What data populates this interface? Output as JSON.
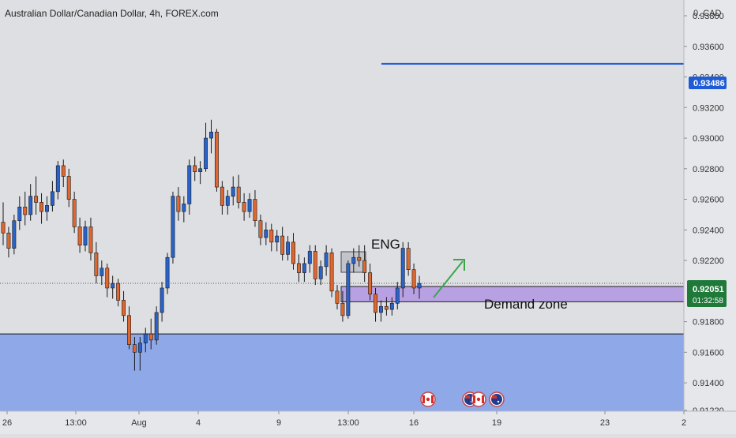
{
  "header": {
    "title": "Australian Dollar/Canadian Dollar, 4h, FOREX.com"
  },
  "axis": {
    "currency_label": "0. CAD"
  },
  "price_badges": {
    "target": "0.93486",
    "current": "0.92051",
    "countdown": "01:32:58"
  },
  "annotations": {
    "pattern": "ENG",
    "zone": "Demand zone"
  },
  "event_icons": [
    "flag-canada",
    "flag-australia",
    "flag-canada",
    "flag-australia"
  ],
  "colors": {
    "background": "#dedfe2",
    "up_candle": "#2962c9",
    "down_candle": "#e0672f",
    "target_line": "#1e5bd6",
    "demand_zone": "#b8a1e3",
    "lower_zone": "#8fa8e8",
    "current_price_badge": "#1f7a3a",
    "arrow": "#3aa64a"
  },
  "chart_data": {
    "type": "candlestick",
    "symbol": "AUD/CAD",
    "timeframe": "4h",
    "ylim": [
      0.9122,
      0.9395
    ],
    "y_ticks": [
      "0.93800",
      "0.93600",
      "0.93400",
      "0.93200",
      "0.93000",
      "0.92800",
      "0.92600",
      "0.92400",
      "0.92200",
      "0.91800",
      "0.91600",
      "0.91400",
      "0.91220"
    ],
    "x_ticks": [
      "26",
      "13:00",
      "Aug",
      "4",
      "9",
      "13:00",
      "16",
      "19",
      "23",
      "2"
    ],
    "target_level": 0.93486,
    "current_price": 0.92051,
    "demand_zone": [
      0.9193,
      0.9203
    ],
    "lower_zone": [
      0.9122,
      0.9172
    ],
    "candles": [
      {
        "o": 0.9245,
        "h": 0.9258,
        "l": 0.923,
        "c": 0.9238
      },
      {
        "o": 0.9238,
        "h": 0.9242,
        "l": 0.9222,
        "c": 0.9228
      },
      {
        "o": 0.9228,
        "h": 0.925,
        "l": 0.9224,
        "c": 0.9246
      },
      {
        "o": 0.9246,
        "h": 0.9262,
        "l": 0.924,
        "c": 0.9255
      },
      {
        "o": 0.9255,
        "h": 0.9265,
        "l": 0.9243,
        "c": 0.925
      },
      {
        "o": 0.925,
        "h": 0.927,
        "l": 0.9246,
        "c": 0.9262
      },
      {
        "o": 0.9262,
        "h": 0.9275,
        "l": 0.925,
        "c": 0.9258
      },
      {
        "o": 0.9258,
        "h": 0.9264,
        "l": 0.9244,
        "c": 0.9252
      },
      {
        "o": 0.9252,
        "h": 0.9262,
        "l": 0.9246,
        "c": 0.9256
      },
      {
        "o": 0.9256,
        "h": 0.9272,
        "l": 0.9252,
        "c": 0.9265
      },
      {
        "o": 0.9265,
        "h": 0.9285,
        "l": 0.926,
        "c": 0.9282
      },
      {
        "o": 0.9282,
        "h": 0.9286,
        "l": 0.9268,
        "c": 0.9275
      },
      {
        "o": 0.9275,
        "h": 0.928,
        "l": 0.9255,
        "c": 0.926
      },
      {
        "o": 0.926,
        "h": 0.9265,
        "l": 0.9238,
        "c": 0.9242
      },
      {
        "o": 0.9242,
        "h": 0.9248,
        "l": 0.9225,
        "c": 0.923
      },
      {
        "o": 0.923,
        "h": 0.9246,
        "l": 0.9226,
        "c": 0.9242
      },
      {
        "o": 0.9242,
        "h": 0.9248,
        "l": 0.922,
        "c": 0.9225
      },
      {
        "o": 0.9225,
        "h": 0.9232,
        "l": 0.9205,
        "c": 0.921
      },
      {
        "o": 0.921,
        "h": 0.922,
        "l": 0.9204,
        "c": 0.9215
      },
      {
        "o": 0.9215,
        "h": 0.9218,
        "l": 0.9196,
        "c": 0.9202
      },
      {
        "o": 0.9202,
        "h": 0.921,
        "l": 0.9195,
        "c": 0.9205
      },
      {
        "o": 0.9205,
        "h": 0.9208,
        "l": 0.919,
        "c": 0.9194
      },
      {
        "o": 0.9194,
        "h": 0.92,
        "l": 0.918,
        "c": 0.9184
      },
      {
        "o": 0.9184,
        "h": 0.919,
        "l": 0.9162,
        "c": 0.9165
      },
      {
        "o": 0.9165,
        "h": 0.917,
        "l": 0.9148,
        "c": 0.916
      },
      {
        "o": 0.916,
        "h": 0.917,
        "l": 0.9148,
        "c": 0.9166
      },
      {
        "o": 0.9166,
        "h": 0.9176,
        "l": 0.916,
        "c": 0.9172
      },
      {
        "o": 0.9172,
        "h": 0.9182,
        "l": 0.9162,
        "c": 0.9168
      },
      {
        "o": 0.9168,
        "h": 0.919,
        "l": 0.9165,
        "c": 0.9186
      },
      {
        "o": 0.9186,
        "h": 0.9206,
        "l": 0.918,
        "c": 0.9202
      },
      {
        "o": 0.9202,
        "h": 0.9225,
        "l": 0.9198,
        "c": 0.9222
      },
      {
        "o": 0.9222,
        "h": 0.9265,
        "l": 0.9218,
        "c": 0.9262
      },
      {
        "o": 0.9262,
        "h": 0.9268,
        "l": 0.9246,
        "c": 0.9252
      },
      {
        "o": 0.9252,
        "h": 0.9262,
        "l": 0.9245,
        "c": 0.9257
      },
      {
        "o": 0.9257,
        "h": 0.9286,
        "l": 0.925,
        "c": 0.9282
      },
      {
        "o": 0.9282,
        "h": 0.9288,
        "l": 0.9272,
        "c": 0.9278
      },
      {
        "o": 0.9278,
        "h": 0.9285,
        "l": 0.927,
        "c": 0.928
      },
      {
        "o": 0.928,
        "h": 0.931,
        "l": 0.9278,
        "c": 0.93
      },
      {
        "o": 0.93,
        "h": 0.9312,
        "l": 0.929,
        "c": 0.9304
      },
      {
        "o": 0.9304,
        "h": 0.9306,
        "l": 0.9265,
        "c": 0.9268
      },
      {
        "o": 0.9268,
        "h": 0.9272,
        "l": 0.925,
        "c": 0.9256
      },
      {
        "o": 0.9256,
        "h": 0.9266,
        "l": 0.925,
        "c": 0.9262
      },
      {
        "o": 0.9262,
        "h": 0.9275,
        "l": 0.9256,
        "c": 0.9268
      },
      {
        "o": 0.9268,
        "h": 0.9276,
        "l": 0.9254,
        "c": 0.9258
      },
      {
        "o": 0.9258,
        "h": 0.9264,
        "l": 0.9246,
        "c": 0.9252
      },
      {
        "o": 0.9252,
        "h": 0.9264,
        "l": 0.9248,
        "c": 0.926
      },
      {
        "o": 0.926,
        "h": 0.9266,
        "l": 0.9242,
        "c": 0.9246
      },
      {
        "o": 0.9246,
        "h": 0.925,
        "l": 0.923,
        "c": 0.9235
      },
      {
        "o": 0.9235,
        "h": 0.9245,
        "l": 0.923,
        "c": 0.924
      },
      {
        "o": 0.924,
        "h": 0.9244,
        "l": 0.9226,
        "c": 0.9232
      },
      {
        "o": 0.9232,
        "h": 0.924,
        "l": 0.9226,
        "c": 0.9236
      },
      {
        "o": 0.9236,
        "h": 0.9242,
        "l": 0.922,
        "c": 0.9224
      },
      {
        "o": 0.9224,
        "h": 0.9236,
        "l": 0.922,
        "c": 0.9232
      },
      {
        "o": 0.9232,
        "h": 0.9238,
        "l": 0.9214,
        "c": 0.9218
      },
      {
        "o": 0.9218,
        "h": 0.9224,
        "l": 0.9206,
        "c": 0.9212
      },
      {
        "o": 0.9212,
        "h": 0.9222,
        "l": 0.9206,
        "c": 0.9218
      },
      {
        "o": 0.9218,
        "h": 0.923,
        "l": 0.9212,
        "c": 0.9226
      },
      {
        "o": 0.9226,
        "h": 0.923,
        "l": 0.9204,
        "c": 0.9208
      },
      {
        "o": 0.9208,
        "h": 0.922,
        "l": 0.9204,
        "c": 0.9216
      },
      {
        "o": 0.9216,
        "h": 0.923,
        "l": 0.921,
        "c": 0.9225
      },
      {
        "o": 0.9225,
        "h": 0.9228,
        "l": 0.9196,
        "c": 0.92
      },
      {
        "o": 0.92,
        "h": 0.9204,
        "l": 0.9188,
        "c": 0.9192
      },
      {
        "o": 0.9192,
        "h": 0.92,
        "l": 0.918,
        "c": 0.9184
      },
      {
        "o": 0.9184,
        "h": 0.922,
        "l": 0.9182,
        "c": 0.9218
      },
      {
        "o": 0.9218,
        "h": 0.9228,
        "l": 0.9212,
        "c": 0.9222
      },
      {
        "o": 0.9222,
        "h": 0.923,
        "l": 0.9216,
        "c": 0.922
      },
      {
        "o": 0.922,
        "h": 0.923,
        "l": 0.9206,
        "c": 0.9212
      },
      {
        "o": 0.9212,
        "h": 0.9218,
        "l": 0.9194,
        "c": 0.9198
      },
      {
        "o": 0.9198,
        "h": 0.9202,
        "l": 0.918,
        "c": 0.9186
      },
      {
        "o": 0.9186,
        "h": 0.9194,
        "l": 0.918,
        "c": 0.919
      },
      {
        "o": 0.919,
        "h": 0.9196,
        "l": 0.9184,
        "c": 0.9188
      },
      {
        "o": 0.9188,
        "h": 0.9196,
        "l": 0.9184,
        "c": 0.9192
      },
      {
        "o": 0.9192,
        "h": 0.9206,
        "l": 0.9188,
        "c": 0.9202
      },
      {
        "o": 0.9202,
        "h": 0.9232,
        "l": 0.9196,
        "c": 0.9228
      },
      {
        "o": 0.9228,
        "h": 0.9232,
        "l": 0.921,
        "c": 0.9214
      },
      {
        "o": 0.9214,
        "h": 0.9218,
        "l": 0.9198,
        "c": 0.9202
      },
      {
        "o": 0.9202,
        "h": 0.921,
        "l": 0.9195,
        "c": 0.9205
      }
    ]
  }
}
